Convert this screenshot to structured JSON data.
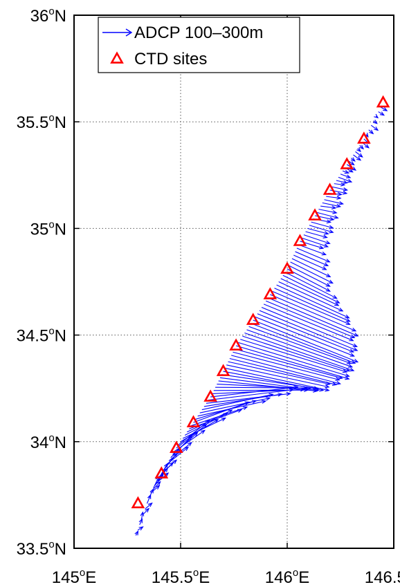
{
  "chart_data": {
    "type": "quiver",
    "title": "",
    "xlabel": "",
    "ylabel": "",
    "xlim": [
      145.0,
      146.5
    ],
    "ylim": [
      33.5,
      36.0
    ],
    "grid": true,
    "x_ticks": [
      {
        "value": 145.0,
        "num": "145",
        "deg": "o",
        "hem": "E"
      },
      {
        "value": 145.5,
        "num": "145.5",
        "deg": "o",
        "hem": "E"
      },
      {
        "value": 146.0,
        "num": "146",
        "deg": "o",
        "hem": "E"
      },
      {
        "value": 146.5,
        "num": "146.5",
        "deg": "o",
        "hem": "E"
      }
    ],
    "y_ticks": [
      {
        "value": 33.5,
        "num": "33.5",
        "deg": "o",
        "hem": "N"
      },
      {
        "value": 34.0,
        "num": "34",
        "deg": "o",
        "hem": "N"
      },
      {
        "value": 34.5,
        "num": "34.5",
        "deg": "o",
        "hem": "N"
      },
      {
        "value": 35.0,
        "num": "35",
        "deg": "o",
        "hem": "N"
      },
      {
        "value": 35.5,
        "num": "35.5",
        "deg": "o",
        "hem": "N"
      },
      {
        "value": 36.0,
        "num": "36",
        "deg": "o",
        "hem": "N"
      }
    ],
    "legend": {
      "position": "top-left",
      "entries": [
        {
          "label": "ADCP 100–300m",
          "marker": "arrow",
          "color": "#0000ff"
        },
        {
          "label": "CTD sites",
          "marker": "triangle",
          "color": "#ff0000"
        }
      ]
    },
    "ctd_sites": {
      "name": "CTD sites",
      "color": "#ff0000",
      "lon": [
        145.3,
        145.41,
        145.48,
        145.56,
        145.64,
        145.7,
        145.76,
        145.84,
        145.92,
        146.0,
        146.06,
        146.13,
        146.2,
        146.28,
        146.36,
        146.45
      ],
      "lat": [
        33.71,
        33.85,
        33.97,
        34.09,
        34.21,
        34.33,
        34.45,
        34.57,
        34.69,
        34.81,
        34.94,
        35.06,
        35.18,
        35.3,
        35.42,
        35.59
      ]
    },
    "adcp_vectors": {
      "name": "ADCP 100–300m",
      "color": "#0000ff",
      "track_lon": [
        145.29,
        145.36,
        145.41,
        145.48,
        145.56,
        145.64,
        145.7,
        145.76,
        145.84,
        145.92,
        146.0,
        146.06,
        146.13,
        146.2,
        146.28,
        146.36,
        146.45
      ],
      "track_lat": [
        33.56,
        33.76,
        33.85,
        33.97,
        34.09,
        34.21,
        34.33,
        34.45,
        34.57,
        34.69,
        34.81,
        34.94,
        35.06,
        35.18,
        35.3,
        35.42,
        35.59
      ],
      "tip_lon": [
        145.3,
        145.39,
        145.47,
        145.62,
        145.83,
        146.06,
        146.17,
        146.28,
        146.32,
        146.32,
        146.21,
        146.18,
        146.22,
        146.27,
        146.31,
        146.38,
        146.47
      ],
      "tip_lat": [
        33.58,
        33.8,
        33.92,
        34.08,
        34.18,
        34.25,
        34.24,
        34.3,
        34.38,
        34.52,
        34.7,
        34.9,
        35.04,
        35.17,
        35.28,
        35.4,
        35.58
      ]
    }
  }
}
